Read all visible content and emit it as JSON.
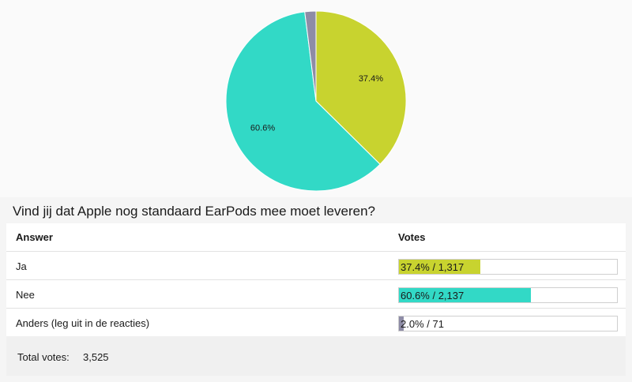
{
  "chart_data": {
    "type": "pie",
    "categories": [
      "Ja",
      "Nee",
      "Anders (leg uit in de reacties)"
    ],
    "values": [
      37.4,
      60.6,
      2.0
    ],
    "labels": [
      "37.4%",
      "60.6%",
      ""
    ],
    "colors": [
      "#c8d32f",
      "#32d9c6",
      "#8e8ca6"
    ]
  },
  "poll": {
    "question": "Vind jij dat Apple nog standaard EarPods mee moet leveren?",
    "header_answer": "Answer",
    "header_votes": "Votes",
    "rows": [
      {
        "answer": "Ja",
        "percent": 37.4,
        "label": "37.4% / 1,317",
        "color": "#c8d32f"
      },
      {
        "answer": "Nee",
        "percent": 60.6,
        "label": "60.6% / 2,137",
        "color": "#32d9c6"
      },
      {
        "answer": "Anders (leg uit in de reacties)",
        "percent": 2.0,
        "label": "2.0% / 71",
        "color": "#8e8ca6"
      }
    ],
    "total_label": "Total votes:",
    "total_value": "3,525"
  }
}
